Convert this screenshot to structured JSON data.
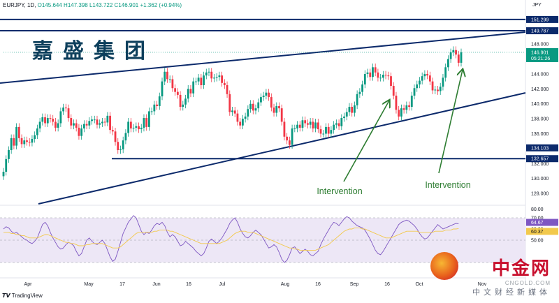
{
  "header": {
    "symbol_line": "EURJPY, 1D,",
    "ohlc": "O145.644 H147.398 L143.722 C146.901 +1.362 (+0.94%)",
    "currency": "JPY"
  },
  "brand_text": "嘉盛集团",
  "footer": {
    "tradingview": "TradingView"
  },
  "watermark": {
    "name": "中金网",
    "domain": "CNGOLD.COM",
    "sub": "中文财经新媒体"
  },
  "colors": {
    "up": "#089981",
    "down": "#f23645",
    "trendline": "#0c2a6b",
    "rsi_line": "#7e57c2",
    "rsi_ma": "#f2c94c",
    "rsi_band": "#ede7f6",
    "annotation": "#2e7d32",
    "last_price_box": "#089981"
  },
  "chart_data": [
    {
      "type": "candlestick",
      "title": "EURJPY, 1D",
      "x_ticks": [
        "Apr",
        "May",
        "17",
        "Jun",
        "16",
        "Jul",
        "Aug",
        "16",
        "Sep",
        "16",
        "Oct",
        "Nov"
      ],
      "y_ticks": [
        "148.000",
        "146.000",
        "144.000",
        "142.000",
        "140.000",
        "138.000",
        "136.000",
        "134.000",
        "132.000",
        "130.000",
        "128.000"
      ],
      "ylim": [
        126.6,
        152.6
      ],
      "series": [
        {
          "name": "EURJPY",
          "close": [
            130.9,
            132.6,
            133.8,
            135.4,
            134.4,
            136.9,
            135.4,
            134.6,
            135.1,
            134.9,
            134.8,
            135.3,
            135.8,
            136.7,
            137.6,
            138.2,
            137.4,
            138.1,
            138.0,
            137.6,
            136.8,
            137.4,
            139.0,
            139.5,
            139.4,
            138.1,
            137.1,
            137.4,
            136.8,
            135.7,
            136.7,
            137.3,
            137.1,
            137.7,
            137.9,
            137.9,
            137.2,
            137.4,
            137.6,
            137.5,
            138.4,
            136.5,
            136.3,
            134.9,
            133.8,
            133.9,
            135.1,
            136.1,
            137.6,
            136.7,
            136.8,
            137.0,
            136.6,
            136.8,
            138.1,
            136.9,
            139.0,
            139.0,
            139.9,
            139.7,
            141.0,
            143.0,
            144.3,
            143.3,
            143.3,
            142.1,
            141.6,
            141.2,
            139.6,
            139.9,
            140.7,
            142.0,
            141.4,
            143.0,
            143.0,
            143.5,
            142.5,
            143.8,
            144.2,
            144.3,
            143.4,
            143.5,
            143.6,
            143.8,
            142.8,
            142.5,
            141.3,
            138.9,
            139.1,
            138.7,
            137.6,
            137.1,
            138.0,
            138.3,
            139.3,
            140.0,
            139.1,
            139.4,
            140.2,
            140.9,
            141.1,
            141.5,
            140.9,
            139.5,
            138.8,
            139.7,
            139.4,
            137.6,
            135.6,
            135.1,
            134.5,
            136.7,
            136.7,
            137.2,
            136.8,
            137.8,
            137.4,
            137.2,
            137.6,
            136.7,
            137.5,
            136.6,
            136.0,
            136.0,
            136.9,
            136.0,
            136.5,
            137.2,
            137.4,
            137.0,
            138.1,
            138.3,
            138.9,
            139.6,
            138.8,
            139.8,
            141.3,
            141.6,
            142.6,
            144.0,
            144.2,
            143.6,
            144.9,
            144.2,
            143.5,
            143.5,
            143.9,
            143.8,
            143.7,
            142.4,
            141.1,
            139.2,
            138.3,
            139.4,
            139.2,
            139.8,
            139.6,
            141.1,
            142.1,
            142.6,
            143.1,
            143.7,
            144.0,
            143.8,
            143.0,
            141.8,
            141.9,
            141.7,
            142.3,
            143.5,
            144.9,
            146.0,
            146.9,
            147.2,
            146.6,
            145.5,
            146.9
          ]
        },
        {
          "name": "RSI",
          "ylim": [
            20,
            80
          ],
          "y_ticks": [
            "70.00",
            "60.00",
            "50.00"
          ],
          "bands": [
            30,
            70
          ],
          "values": [
            60,
            62,
            61,
            58,
            56,
            57,
            55,
            53,
            51,
            50,
            48,
            47,
            49,
            52,
            58,
            64,
            66,
            63,
            57,
            52,
            48,
            44,
            42,
            43,
            46,
            48,
            47,
            45,
            40,
            36,
            38,
            44,
            50,
            52,
            49,
            47,
            46,
            48,
            50,
            47,
            41,
            35,
            31,
            33,
            40,
            48,
            56,
            61,
            66,
            69,
            72,
            70,
            64,
            58,
            55,
            57,
            56,
            59,
            63,
            65,
            64,
            66,
            63,
            57,
            53,
            55,
            53,
            49,
            45,
            46,
            49,
            47,
            45,
            43,
            40,
            38,
            36,
            38,
            43,
            49,
            51,
            49,
            47,
            49,
            52,
            56,
            60,
            65,
            68,
            70,
            66,
            60,
            56,
            53,
            52,
            54,
            57,
            59,
            57,
            55,
            51,
            47,
            43,
            44,
            46,
            44,
            39,
            33,
            30,
            32,
            37,
            43,
            44,
            41,
            38,
            40,
            42,
            40,
            37,
            36,
            38,
            40,
            46,
            51,
            55,
            59,
            63,
            66,
            65,
            63,
            66,
            69,
            71,
            70,
            67,
            65,
            63,
            62,
            61,
            59,
            55,
            51,
            46,
            41,
            38,
            37,
            40,
            44,
            48,
            52,
            56,
            60,
            64,
            66,
            67,
            68,
            67,
            65,
            63,
            60,
            56,
            53,
            51,
            52,
            55,
            58,
            61,
            64,
            62,
            60,
            61,
            62,
            63,
            64,
            65,
            64.67
          ],
          "ma_values": [
            57,
            57,
            57,
            56,
            56,
            55,
            55,
            54,
            54,
            53,
            52,
            52,
            52,
            52,
            53,
            54,
            55,
            55,
            54,
            53,
            52,
            51,
            50,
            49,
            48,
            48,
            47,
            47,
            46,
            45,
            45,
            45,
            46,
            46,
            47,
            47,
            47,
            47,
            47,
            46,
            45,
            44,
            43,
            43,
            43,
            44,
            46,
            48,
            50,
            52,
            54,
            56,
            57,
            57,
            57,
            57,
            57,
            57,
            58,
            58,
            59,
            59,
            59,
            59,
            58,
            58,
            57,
            56,
            55,
            54,
            53,
            52,
            51,
            50,
            49,
            48,
            47,
            47,
            47,
            47,
            47,
            47,
            47,
            47,
            48,
            49,
            50,
            52,
            54,
            56,
            57,
            58,
            58,
            58,
            57,
            57,
            57,
            56,
            55,
            54,
            53,
            52,
            51,
            50,
            49,
            48,
            47,
            46,
            45,
            44,
            43,
            43,
            42,
            42,
            41,
            41,
            41,
            41,
            41,
            41,
            41,
            42,
            43,
            44,
            45,
            46,
            48,
            50,
            52,
            54,
            56,
            58,
            59,
            60,
            60,
            61,
            61,
            61,
            60,
            60,
            59,
            58,
            57,
            56,
            55,
            54,
            53,
            52,
            52,
            52,
            53,
            54,
            55,
            56,
            57,
            58,
            58,
            58,
            58,
            58,
            57,
            57,
            57,
            57,
            57,
            57,
            58,
            58,
            58,
            58,
            59,
            59,
            59,
            60,
            60,
            60.37
          ]
        }
      ],
      "price_labels": [
        {
          "label": "151.299",
          "value": 151.3
        },
        {
          "label": "149.787",
          "value": 149.79
        },
        {
          "label": "146.901",
          "value": 146.901,
          "time": "05:21:26"
        },
        {
          "label": "134.103",
          "value": 134.103
        },
        {
          "label": "132.657",
          "value": 132.657
        }
      ],
      "rsi_labels": [
        {
          "label": "64.67",
          "value": 64.67
        },
        {
          "label": "60.37",
          "value": 60.37
        }
      ],
      "horizontal_lines": [
        151.3,
        149.79,
        132.657
      ],
      "annotations": [
        {
          "text": "Intervention"
        },
        {
          "text": "Intervention"
        }
      ]
    }
  ]
}
